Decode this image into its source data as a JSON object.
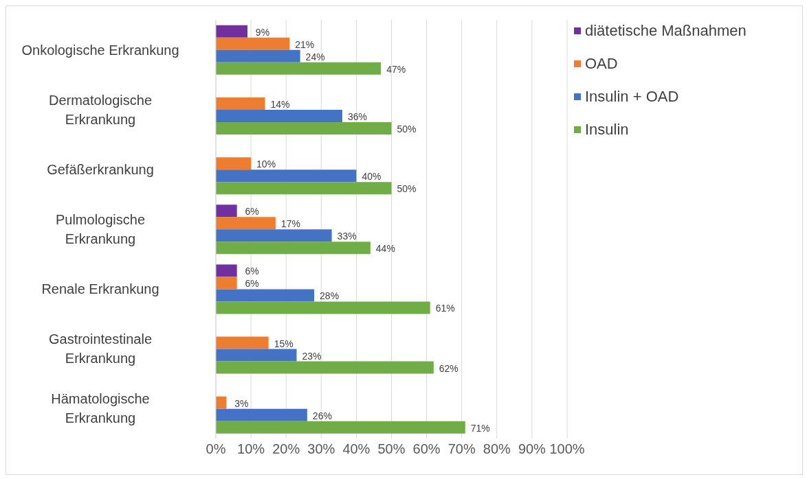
{
  "chart_data": {
    "type": "bar",
    "orientation": "horizontal",
    "categories": [
      "Onkologische Erkrankung",
      "Dermatologische Erkrankung",
      "Gefäßerkrankung",
      "Pulmologische Erkrankung",
      "Renale Erkrankung",
      "Gastrointestinale Erkrankung",
      "Hämatologische Erkrankung"
    ],
    "series": [
      {
        "name": "diätetische Maßnahmen",
        "color": "#7030a0",
        "values": [
          9,
          null,
          null,
          6,
          6,
          null,
          null
        ],
        "value_labels": [
          "9%",
          null,
          null,
          "6%",
          "6%",
          null,
          null
        ]
      },
      {
        "name": "OAD",
        "color": "#ed7d31",
        "values": [
          21,
          14,
          10,
          17,
          6,
          15,
          3
        ],
        "value_labels": [
          "21%",
          "14%",
          "10%",
          "17%",
          "6%",
          "15%",
          "3%"
        ]
      },
      {
        "name": "Insulin + OAD",
        "color": "#4472c4",
        "values": [
          24,
          36,
          40,
          33,
          28,
          23,
          26
        ],
        "value_labels": [
          "24%",
          "36%",
          "40%",
          "33%",
          "28%",
          "23%",
          "26%"
        ]
      },
      {
        "name": "Insulin",
        "color": "#70ad47",
        "values": [
          47,
          50,
          50,
          44,
          61,
          62,
          71
        ],
        "value_labels": [
          "47%",
          "50%",
          "50%",
          "44%",
          "61%",
          "62%",
          "71%"
        ]
      }
    ],
    "xlim": [
      0,
      100
    ],
    "xticks": [
      {
        "value": 0,
        "label": "0%"
      },
      {
        "value": 10,
        "label": "10%"
      },
      {
        "value": 20,
        "label": "20%"
      },
      {
        "value": 30,
        "label": "30%"
      },
      {
        "value": 40,
        "label": "40%"
      },
      {
        "value": 50,
        "label": "50%"
      },
      {
        "value": 60,
        "label": "60%"
      },
      {
        "value": 70,
        "label": "70%"
      },
      {
        "value": 80,
        "label": "80%"
      },
      {
        "value": 90,
        "label": "90%"
      },
      {
        "value": 100,
        "label": "100%"
      }
    ],
    "grid": "x",
    "legend": "top right"
  }
}
